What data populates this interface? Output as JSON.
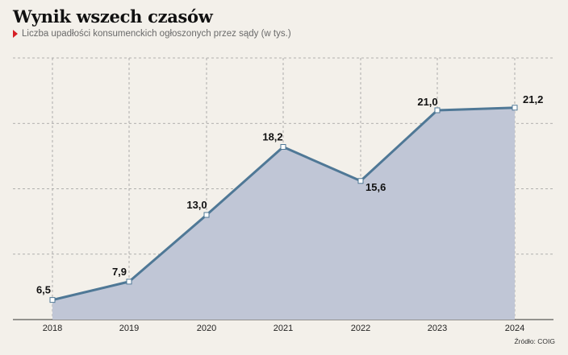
{
  "header": {
    "title": "Wynik wszech czasów",
    "subtitle": "Liczba upadłości konsumenckich ogłoszonych przez sądy (w tys.)"
  },
  "source": "Źródło: COIG",
  "colors": {
    "line": "#4f7896",
    "area": "#c0c6d6",
    "accent": "#d61f26",
    "background": "#f3f0ea"
  },
  "chart_data": {
    "type": "area",
    "title": "Wynik wszech czasów",
    "subtitle": "Liczba upadłości konsumenckich ogłoszonych przez sądy (w tys.)",
    "categories": [
      "2018",
      "2019",
      "2020",
      "2021",
      "2022",
      "2023",
      "2024"
    ],
    "values": [
      6.5,
      7.9,
      13.0,
      18.2,
      15.6,
      21.0,
      21.2
    ],
    "value_labels": [
      "6,5",
      "7,9",
      "13,0",
      "18,2",
      "15,6",
      "21,0",
      "21,2"
    ],
    "ylim": [
      5,
      25
    ],
    "xlabel": "",
    "ylabel": "",
    "grid": true,
    "legend": "none"
  }
}
